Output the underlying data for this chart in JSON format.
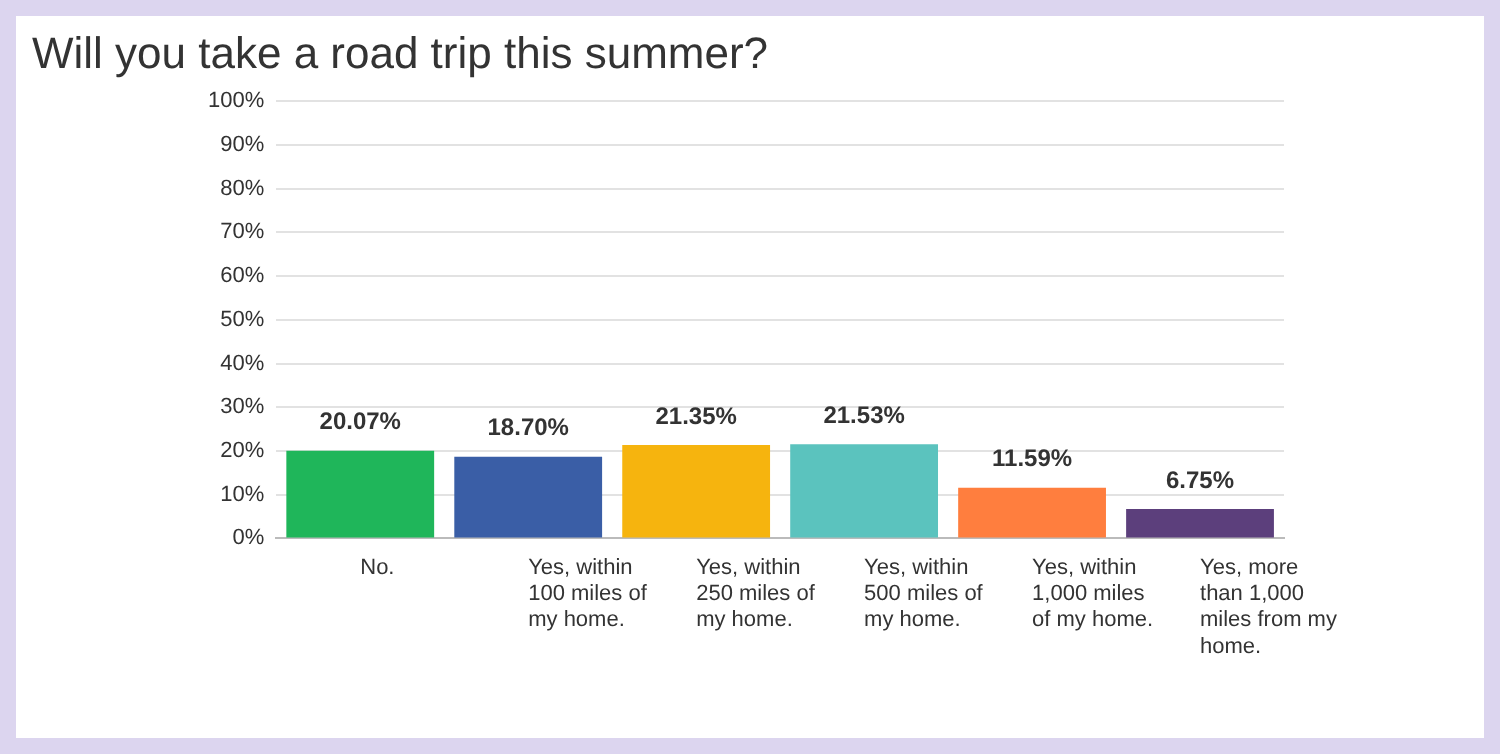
{
  "chart_data": {
    "type": "bar",
    "title": "Will you take a road trip this summer?",
    "categories": [
      "No.",
      "Yes, within 100 miles of my home.",
      "Yes, within 250 miles of my home.",
      "Yes, within 500 miles of my home.",
      "Yes, within 1,000 miles of my home.",
      "Yes, more than 1,000 miles from my home."
    ],
    "values": [
      20.07,
      18.7,
      21.35,
      21.53,
      11.59,
      6.75
    ],
    "colors": [
      "#1fb65a",
      "#3a5ea6",
      "#f6b40e",
      "#5bc3be",
      "#ff7e3e",
      "#5c3f7c"
    ],
    "value_labels": [
      "20.07%",
      "18.70%",
      "21.35%",
      "21.53%",
      "11.59%",
      "6.75%"
    ],
    "ylim": [
      0,
      100
    ],
    "yticks": [
      {
        "value": 0,
        "label": "0%"
      },
      {
        "value": 10,
        "label": "10%"
      },
      {
        "value": 20,
        "label": "20%"
      },
      {
        "value": 30,
        "label": "30%"
      },
      {
        "value": 40,
        "label": "40%"
      },
      {
        "value": 50,
        "label": "50%"
      },
      {
        "value": 60,
        "label": "60%"
      },
      {
        "value": 70,
        "label": "70%"
      },
      {
        "value": 80,
        "label": "80%"
      },
      {
        "value": 90,
        "label": "90%"
      },
      {
        "value": 100,
        "label": "100%"
      }
    ],
    "grid": "y",
    "legend": false
  }
}
